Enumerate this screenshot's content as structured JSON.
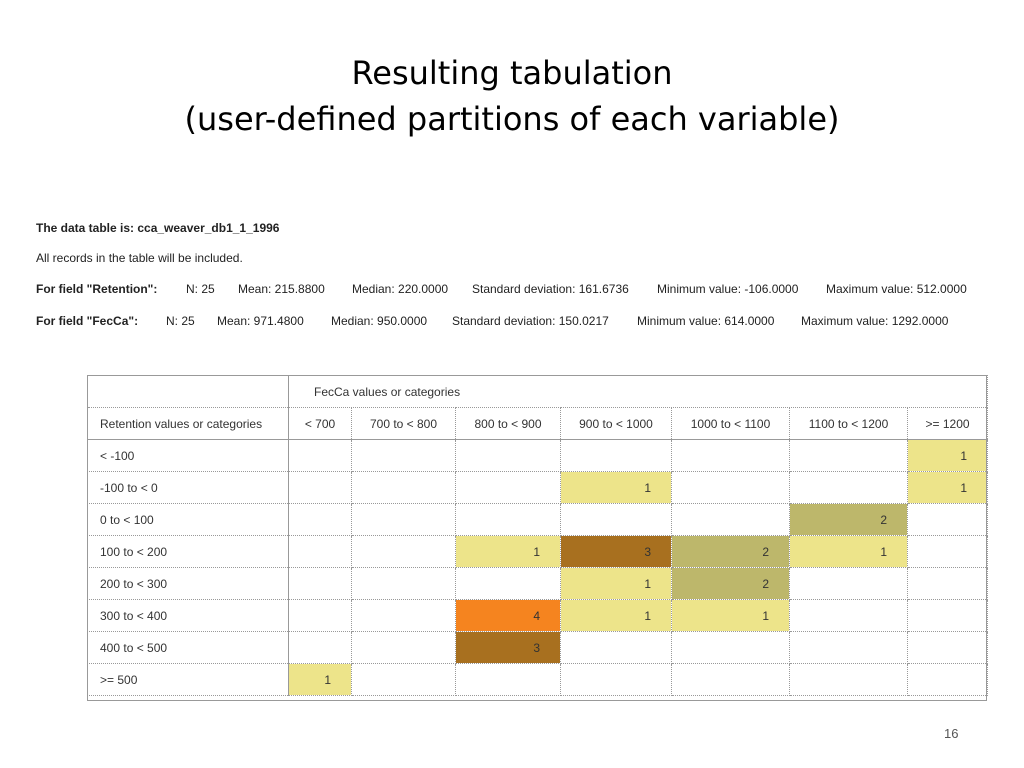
{
  "title": {
    "line1": "Resulting tabulation",
    "line2": "(user-defined partitions of each variable)"
  },
  "info": {
    "table_label": "The data table is: cca_weaver_db1_1_1996",
    "records_note": "All records in the table will be included.",
    "retention": {
      "label": "For field \"Retention\":",
      "n": "N: 25",
      "mean": "Mean: 215.8800",
      "median": "Median: 220.0000",
      "sd": "Standard deviation: 161.6736",
      "min": "Minimum value: -106.0000",
      "max": "Maximum value: 512.0000"
    },
    "fecca": {
      "label": "For field \"FecCa\":",
      "n": "N: 25",
      "mean": "Mean: 971.4800",
      "median": "Median: 950.0000",
      "sd": "Standard deviation: 150.0217",
      "min": "Minimum value: 614.0000",
      "max": "Maximum value: 1292.0000"
    }
  },
  "crosstab": {
    "col_group_label": "FecCa values or categories",
    "row_group_label": "Retention values or categories",
    "columns": [
      "< 700",
      "700 to < 800",
      "800 to < 900",
      "900 to < 1000",
      "1000 to < 1100",
      "1100 to < 1200",
      ">= 1200"
    ],
    "rows": [
      {
        "label": "< -100",
        "cells": [
          "",
          "",
          "",
          "",
          "",
          "",
          "1"
        ]
      },
      {
        "label": "-100 to < 0",
        "cells": [
          "",
          "",
          "",
          "1",
          "",
          "",
          "1"
        ]
      },
      {
        "label": "0 to < 100",
        "cells": [
          "",
          "",
          "",
          "",
          "",
          "2",
          ""
        ]
      },
      {
        "label": "100 to < 200",
        "cells": [
          "",
          "",
          "1",
          "3",
          "2",
          "1",
          ""
        ]
      },
      {
        "label": "200 to < 300",
        "cells": [
          "",
          "",
          "",
          "1",
          "2",
          "",
          ""
        ]
      },
      {
        "label": "300 to < 400",
        "cells": [
          "",
          "",
          "4",
          "1",
          "1",
          "",
          ""
        ]
      },
      {
        "label": "400 to < 500",
        "cells": [
          "",
          "",
          "3",
          "",
          "",
          "",
          ""
        ]
      },
      {
        "label": ">= 500",
        "cells": [
          "1",
          "",
          "",
          "",
          "",
          "",
          ""
        ]
      }
    ],
    "count_colors": {
      "1": "#ede48a",
      "2": "#bdb76b",
      "3": "#a8701f",
      "4": "#f5841f"
    }
  },
  "page_number": "16"
}
